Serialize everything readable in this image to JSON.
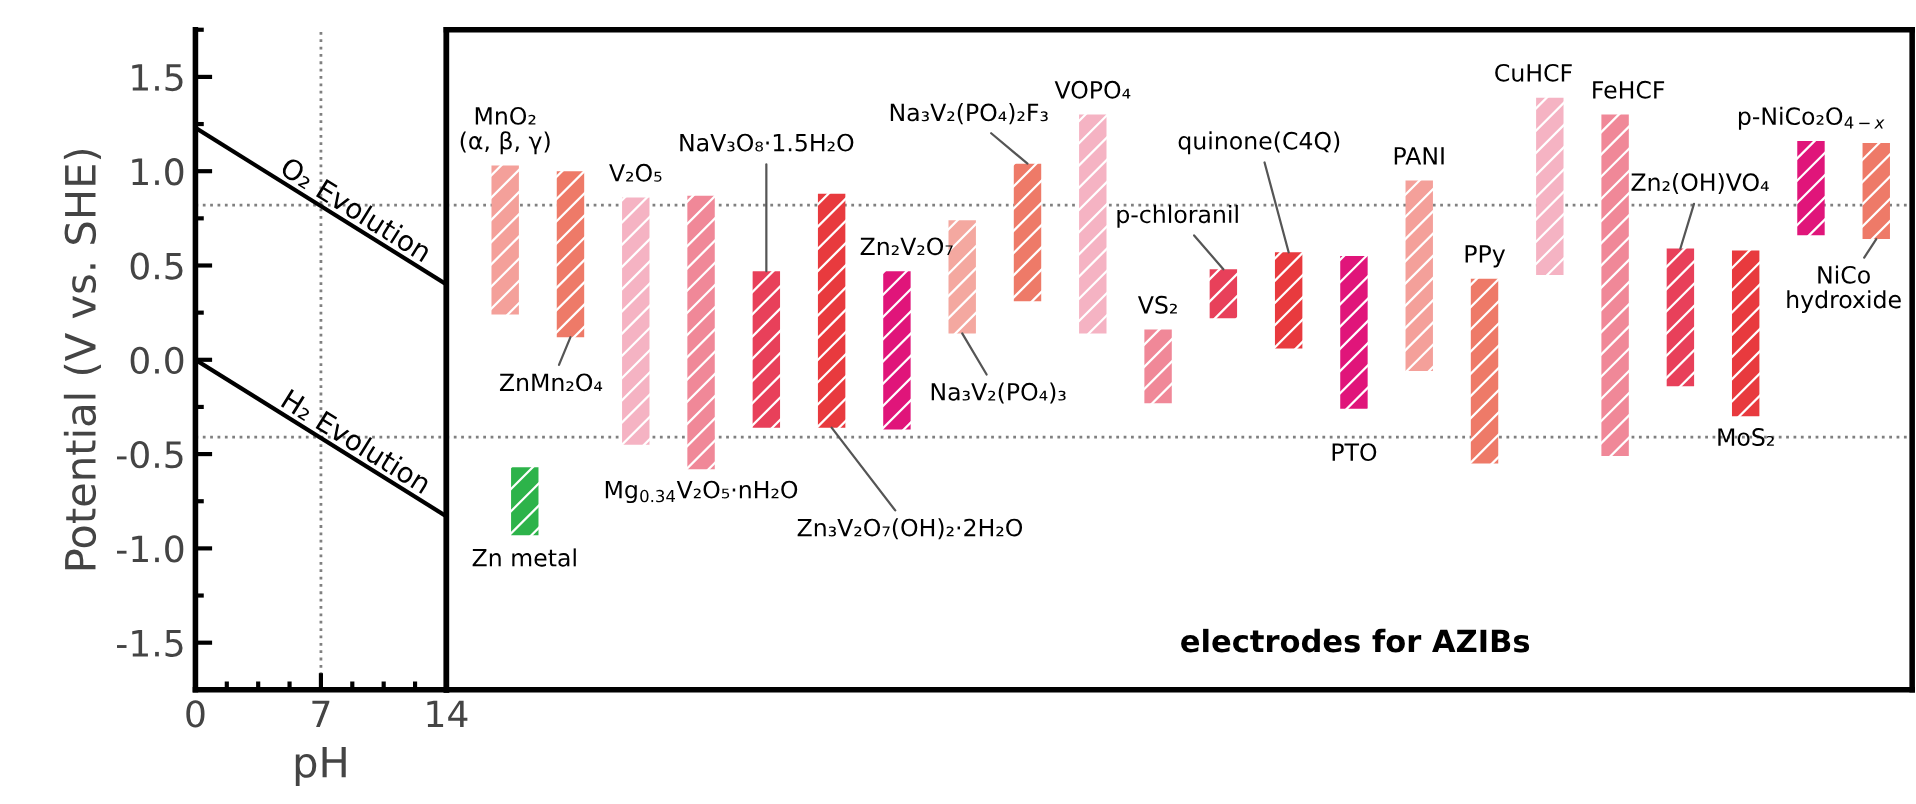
{
  "chart_data": [
    {
      "type": "line",
      "xlabel": "pH",
      "ylabel": "Potential (V vs. SHE)",
      "x": [
        0,
        14
      ],
      "series": [
        {
          "name": "O₂ Evolution",
          "color": "#000000",
          "values": [
            1.23,
            0.4
          ]
        },
        {
          "name": "H₂ Evolution",
          "color": "#000000",
          "values": [
            0,
            -0.83
          ]
        }
      ],
      "xlim": [
        0,
        14
      ],
      "xticks": [
        0,
        7,
        14
      ],
      "ylim": [
        -1.75,
        1.75
      ],
      "yticks": [
        -1.5,
        {
          "value": -1,
          "label": "-1.0"
        },
        -0.5,
        {
          "value": 0,
          "label": "0.0"
        },
        0.5,
        {
          "value": 1,
          "label": "1.0"
        },
        1.5
      ],
      "ref_lines": [
        {
          "axis": "x",
          "value": 7,
          "color": "#808080",
          "line_style": "dotted"
        },
        {
          "axis": "y",
          "value": 0.82,
          "color": "#808080",
          "line_style": "dotted"
        },
        {
          "axis": "y",
          "value": -0.41,
          "color": "#808080",
          "line_style": "dotted"
        }
      ],
      "legend": false,
      "grid": false,
      "marker": "none",
      "line_style": "solid"
    },
    {
      "type": "bar",
      "categories": [
        "MnO₂\n(α, β, γ)",
        "ZnMn₂O₄",
        "V₂O₅",
        "Mg$_{0.34}$V₂O₅·nH₂O",
        "NaV₃O₈·1.5H₂O",
        "Zn₃V₂O₇(OH)₂·2H₂O",
        "Zn₂V₂O₇",
        "Na₃V₂(PO₄)₃",
        "Na₃V₂(PO₄)₂F₃",
        "VOPO₄",
        "VS₂",
        "p-chloranil",
        "quinone(C4Q)",
        "PTO",
        "PANI",
        "PPy",
        "CuHCF",
        "FeHCF",
        "Zn₂(OH)VO₄",
        "MoS₂",
        "p-NiCo₂O$_{4−x}$",
        "NiCo\nhydroxide"
      ],
      "series": [
        {
          "values": [
            0.79,
            0.88,
            1.31,
            1.45,
            0.83,
            1.24,
            0.84,
            0.6,
            0.73,
            1.16,
            0.39,
            0.26,
            0.51,
            0.81,
            1.01,
            0.98,
            0.94,
            1.81,
            0.73,
            0.88,
            0.5,
            0.51
          ],
          "base": [
            0.24,
            0.12,
            -0.45,
            -0.58,
            -0.36,
            -0.36,
            -0.37,
            0.14,
            0.31,
            0.14,
            -0.23,
            0.22,
            0.06,
            -0.26,
            -0.06,
            -0.55,
            0.45,
            -0.51,
            -0.14,
            -0.3,
            0.66,
            0.64
          ],
          "colors": [
            "#f4a09a",
            "#ee7a68",
            "#f5b3c3",
            "#f08898",
            "#e8405a",
            "#e83a3e",
            "#e0157a",
            "#f4a8a0",
            "#ee7a68",
            "#f5b3c3",
            "#f08898",
            "#e8405a",
            "#e83a3e",
            "#e0157a",
            "#f4a09a",
            "#ee7a68",
            "#f5b3c3",
            "#f08898",
            "#e8405a",
            "#e83a3e",
            "#e0157a",
            "#ee7a68"
          ]
        },
        {
          "name": "Zn metal",
          "color": "#2db34a",
          "values": [
            0.36,
            null,
            null,
            null,
            null,
            null,
            null,
            null,
            null,
            null,
            null,
            null,
            null,
            null,
            null,
            null,
            null,
            null,
            null,
            null,
            null,
            null
          ],
          "base": [
            -0.93,
            null,
            null,
            null,
            null,
            null,
            null,
            null,
            null,
            null,
            null,
            null,
            null,
            null,
            null,
            null,
            null,
            null,
            null,
            null,
            null,
            null
          ]
        }
      ],
      "ylim": [
        -1.75,
        1.75
      ],
      "tick_labels": false,
      "ref_lines": [
        {
          "axis": "y",
          "value": 0.82,
          "color": "#808080",
          "line_style": "dotted"
        },
        {
          "axis": "y",
          "value": -0.41,
          "color": "#808080",
          "line_style": "dotted"
        }
      ],
      "annotations": [
        "electrodes for AZIBs"
      ],
      "legend": false,
      "grid": false
    }
  ]
}
